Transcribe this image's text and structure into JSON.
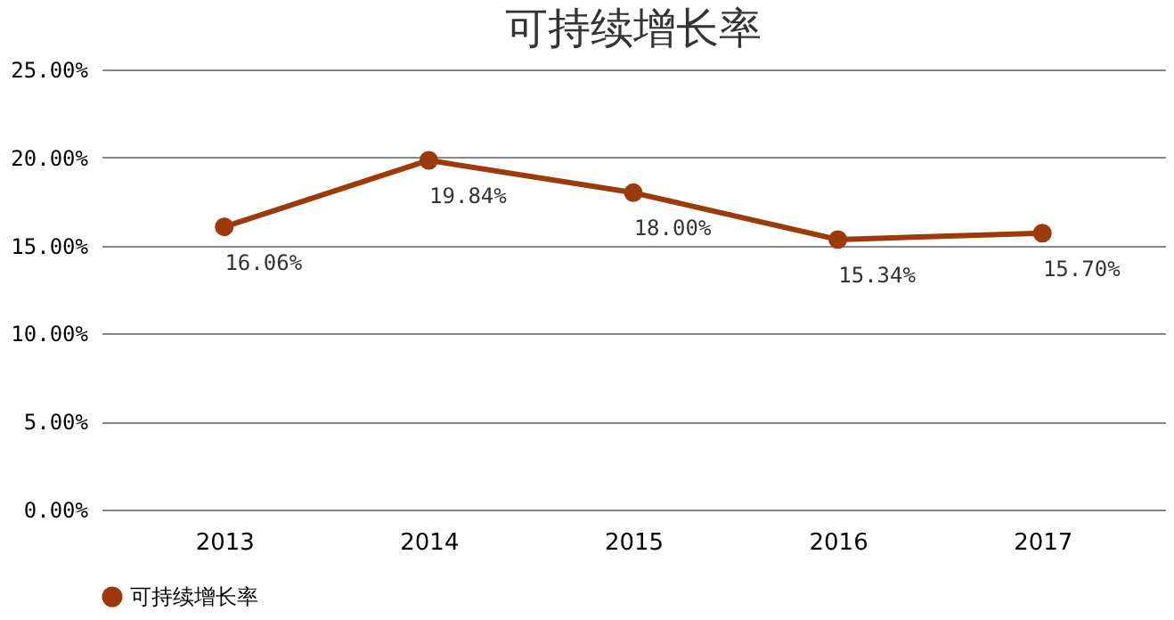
{
  "chart_data": {
    "type": "line",
    "title": "可持续增长率",
    "categories": [
      "2013",
      "2014",
      "2015",
      "2016",
      "2017"
    ],
    "series": [
      {
        "name": "可持续增长率",
        "color": "#9c3a0a",
        "values": [
          16.06,
          19.84,
          18.0,
          15.34,
          15.7
        ],
        "value_labels": [
          "16.06%",
          "19.84%",
          "18.00%",
          "15.34%",
          "15.70%"
        ]
      }
    ],
    "ylim": [
      0,
      25
    ],
    "yticks": [
      {
        "value": 0,
        "label": "0.00%"
      },
      {
        "value": 5,
        "label": "5.00%"
      },
      {
        "value": 10,
        "label": "10.00%"
      },
      {
        "value": 15,
        "label": "15.00%"
      },
      {
        "value": 20,
        "label": "20.00%"
      },
      {
        "value": 25,
        "label": "25.00%"
      }
    ],
    "grid": "y",
    "legend": "bottom",
    "marker": "circle",
    "line_style": "solid"
  }
}
